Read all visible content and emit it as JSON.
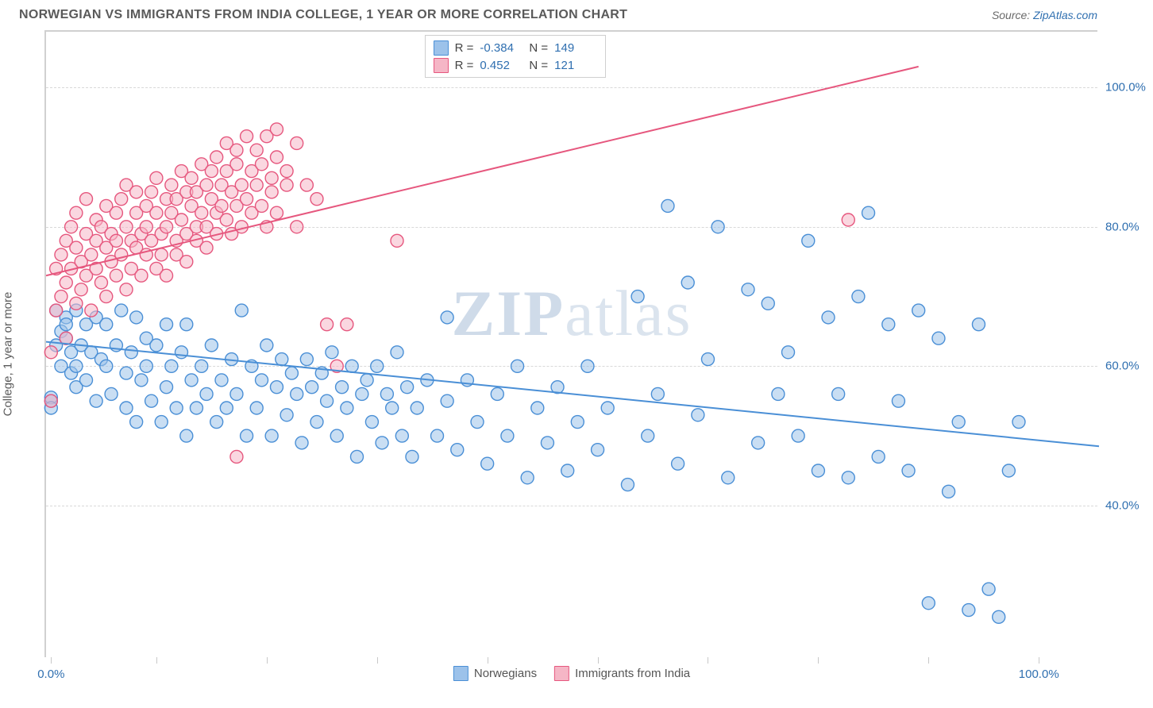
{
  "title": "NORWEGIAN VS IMMIGRANTS FROM INDIA COLLEGE, 1 YEAR OR MORE CORRELATION CHART",
  "source_label": "Source:",
  "source_name": "ZipAtlas.com",
  "watermark": {
    "part1": "ZIP",
    "part2": "atlas"
  },
  "yaxis_title": "College, 1 year or more",
  "chart": {
    "type": "scatter-with-trendlines",
    "background_color": "#ffffff",
    "grid_color": "#d8d8d8",
    "xlim": [
      0,
      105
    ],
    "ylim": [
      18,
      108
    ],
    "xticks_minor": [
      0.5,
      11,
      22,
      33,
      44,
      55,
      66,
      77,
      88,
      99
    ],
    "xticks_labeled": [
      {
        "x": 0.5,
        "label": "0.0%"
      },
      {
        "x": 99,
        "label": "100.0%"
      }
    ],
    "yticks": [
      {
        "y": 40,
        "label": "40.0%"
      },
      {
        "y": 60,
        "label": "60.0%"
      },
      {
        "y": 80,
        "label": "80.0%"
      },
      {
        "y": 100,
        "label": "100.0%"
      }
    ],
    "marker_radius": 8,
    "marker_stroke_width": 1.4,
    "line_width": 2,
    "series": [
      {
        "name": "Norwegians",
        "color_fill": "#9cc2ea",
        "color_stroke": "#4a8fd6",
        "fill_opacity": 0.55,
        "r_value": "-0.384",
        "n_value": "149",
        "trendline": {
          "x1": 0,
          "y1": 63.5,
          "x2": 105,
          "y2": 48.5
        },
        "points": [
          [
            0.5,
            55
          ],
          [
            0.5,
            55.5
          ],
          [
            0.5,
            54
          ],
          [
            1,
            68
          ],
          [
            1,
            63
          ],
          [
            1.5,
            65
          ],
          [
            1.5,
            60
          ],
          [
            2,
            67
          ],
          [
            2,
            66
          ],
          [
            2,
            64
          ],
          [
            2.5,
            62
          ],
          [
            2.5,
            59
          ],
          [
            3,
            68
          ],
          [
            3,
            60
          ],
          [
            3,
            57
          ],
          [
            3.5,
            63
          ],
          [
            4,
            66
          ],
          [
            4,
            58
          ],
          [
            4.5,
            62
          ],
          [
            5,
            67
          ],
          [
            5,
            55
          ],
          [
            5.5,
            61
          ],
          [
            6,
            66
          ],
          [
            6,
            60
          ],
          [
            6.5,
            56
          ],
          [
            7,
            63
          ],
          [
            7.5,
            68
          ],
          [
            8,
            59
          ],
          [
            8,
            54
          ],
          [
            8.5,
            62
          ],
          [
            9,
            67
          ],
          [
            9,
            52
          ],
          [
            9.5,
            58
          ],
          [
            10,
            64
          ],
          [
            10,
            60
          ],
          [
            10.5,
            55
          ],
          [
            11,
            63
          ],
          [
            11.5,
            52
          ],
          [
            12,
            66
          ],
          [
            12,
            57
          ],
          [
            12.5,
            60
          ],
          [
            13,
            54
          ],
          [
            13.5,
            62
          ],
          [
            14,
            66
          ],
          [
            14,
            50
          ],
          [
            14.5,
            58
          ],
          [
            15,
            54
          ],
          [
            15.5,
            60
          ],
          [
            16,
            56
          ],
          [
            16.5,
            63
          ],
          [
            17,
            52
          ],
          [
            17.5,
            58
          ],
          [
            18,
            54
          ],
          [
            18.5,
            61
          ],
          [
            19,
            56
          ],
          [
            19.5,
            68
          ],
          [
            20,
            50
          ],
          [
            20.5,
            60
          ],
          [
            21,
            54
          ],
          [
            21.5,
            58
          ],
          [
            22,
            63
          ],
          [
            22.5,
            50
          ],
          [
            23,
            57
          ],
          [
            23.5,
            61
          ],
          [
            24,
            53
          ],
          [
            24.5,
            59
          ],
          [
            25,
            56
          ],
          [
            25.5,
            49
          ],
          [
            26,
            61
          ],
          [
            26.5,
            57
          ],
          [
            27,
            52
          ],
          [
            27.5,
            59
          ],
          [
            28,
            55
          ],
          [
            28.5,
            62
          ],
          [
            29,
            50
          ],
          [
            29.5,
            57
          ],
          [
            30,
            54
          ],
          [
            30.5,
            60
          ],
          [
            31,
            47
          ],
          [
            31.5,
            56
          ],
          [
            32,
            58
          ],
          [
            32.5,
            52
          ],
          [
            33,
            60
          ],
          [
            33.5,
            49
          ],
          [
            34,
            56
          ],
          [
            34.5,
            54
          ],
          [
            35,
            62
          ],
          [
            35.5,
            50
          ],
          [
            36,
            57
          ],
          [
            36.5,
            47
          ],
          [
            37,
            54
          ],
          [
            38,
            58
          ],
          [
            39,
            50
          ],
          [
            40,
            55
          ],
          [
            40,
            67
          ],
          [
            41,
            48
          ],
          [
            42,
            58
          ],
          [
            43,
            52
          ],
          [
            44,
            46
          ],
          [
            45,
            56
          ],
          [
            46,
            50
          ],
          [
            47,
            60
          ],
          [
            48,
            44
          ],
          [
            49,
            54
          ],
          [
            50,
            49
          ],
          [
            51,
            57
          ],
          [
            52,
            45
          ],
          [
            53,
            52
          ],
          [
            54,
            60
          ],
          [
            55,
            48
          ],
          [
            56,
            54
          ],
          [
            58,
            43
          ],
          [
            59,
            70
          ],
          [
            60,
            50
          ],
          [
            61,
            56
          ],
          [
            62,
            83
          ],
          [
            63,
            46
          ],
          [
            64,
            72
          ],
          [
            65,
            53
          ],
          [
            66,
            61
          ],
          [
            67,
            80
          ],
          [
            68,
            44
          ],
          [
            70,
            71
          ],
          [
            71,
            49
          ],
          [
            72,
            69
          ],
          [
            73,
            56
          ],
          [
            74,
            62
          ],
          [
            75,
            50
          ],
          [
            76,
            78
          ],
          [
            77,
            45
          ],
          [
            78,
            67
          ],
          [
            79,
            56
          ],
          [
            80,
            44
          ],
          [
            81,
            70
          ],
          [
            82,
            82
          ],
          [
            83,
            47
          ],
          [
            84,
            66
          ],
          [
            85,
            55
          ],
          [
            86,
            45
          ],
          [
            87,
            68
          ],
          [
            88,
            26
          ],
          [
            89,
            64
          ],
          [
            90,
            42
          ],
          [
            91,
            52
          ],
          [
            92,
            25
          ],
          [
            93,
            66
          ],
          [
            94,
            28
          ],
          [
            95,
            24
          ],
          [
            96,
            45
          ],
          [
            97,
            52
          ]
        ]
      },
      {
        "name": "Immigrants from India",
        "color_fill": "#f5b6c6",
        "color_stroke": "#e6577e",
        "fill_opacity": 0.55,
        "r_value": "0.452",
        "n_value": "121",
        "trendline": {
          "x1": 0,
          "y1": 73,
          "x2": 87,
          "y2": 103
        },
        "points": [
          [
            0.5,
            62
          ],
          [
            0.5,
            55
          ],
          [
            1,
            74
          ],
          [
            1,
            68
          ],
          [
            1.5,
            76
          ],
          [
            1.5,
            70
          ],
          [
            2,
            78
          ],
          [
            2,
            72
          ],
          [
            2,
            64
          ],
          [
            2.5,
            80
          ],
          [
            2.5,
            74
          ],
          [
            3,
            77
          ],
          [
            3,
            69
          ],
          [
            3,
            82
          ],
          [
            3.5,
            75
          ],
          [
            3.5,
            71
          ],
          [
            4,
            79
          ],
          [
            4,
            73
          ],
          [
            4,
            84
          ],
          [
            4.5,
            76
          ],
          [
            4.5,
            68
          ],
          [
            5,
            81
          ],
          [
            5,
            74
          ],
          [
            5,
            78
          ],
          [
            5.5,
            72
          ],
          [
            5.5,
            80
          ],
          [
            6,
            77
          ],
          [
            6,
            83
          ],
          [
            6,
            70
          ],
          [
            6.5,
            79
          ],
          [
            6.5,
            75
          ],
          [
            7,
            82
          ],
          [
            7,
            73
          ],
          [
            7,
            78
          ],
          [
            7.5,
            76
          ],
          [
            7.5,
            84
          ],
          [
            8,
            80
          ],
          [
            8,
            71
          ],
          [
            8,
            86
          ],
          [
            8.5,
            78
          ],
          [
            8.5,
            74
          ],
          [
            9,
            82
          ],
          [
            9,
            77
          ],
          [
            9,
            85
          ],
          [
            9.5,
            79
          ],
          [
            9.5,
            73
          ],
          [
            10,
            83
          ],
          [
            10,
            76
          ],
          [
            10,
            80
          ],
          [
            10.5,
            78
          ],
          [
            10.5,
            85
          ],
          [
            11,
            82
          ],
          [
            11,
            74
          ],
          [
            11,
            87
          ],
          [
            11.5,
            79
          ],
          [
            11.5,
            76
          ],
          [
            12,
            84
          ],
          [
            12,
            80
          ],
          [
            12,
            73
          ],
          [
            12.5,
            82
          ],
          [
            12.5,
            86
          ],
          [
            13,
            78
          ],
          [
            13,
            84
          ],
          [
            13,
            76
          ],
          [
            13.5,
            81
          ],
          [
            13.5,
            88
          ],
          [
            14,
            85
          ],
          [
            14,
            79
          ],
          [
            14,
            75
          ],
          [
            14.5,
            83
          ],
          [
            14.5,
            87
          ],
          [
            15,
            80
          ],
          [
            15,
            85
          ],
          [
            15,
            78
          ],
          [
            15.5,
            82
          ],
          [
            15.5,
            89
          ],
          [
            16,
            86
          ],
          [
            16,
            80
          ],
          [
            16,
            77
          ],
          [
            16.5,
            84
          ],
          [
            16.5,
            88
          ],
          [
            17,
            82
          ],
          [
            17,
            90
          ],
          [
            17,
            79
          ],
          [
            17.5,
            86
          ],
          [
            17.5,
            83
          ],
          [
            18,
            88
          ],
          [
            18,
            81
          ],
          [
            18,
            92
          ],
          [
            18.5,
            85
          ],
          [
            18.5,
            79
          ],
          [
            19,
            89
          ],
          [
            19,
            83
          ],
          [
            19,
            91
          ],
          [
            19.5,
            86
          ],
          [
            19.5,
            80
          ],
          [
            20,
            93
          ],
          [
            20,
            84
          ],
          [
            20.5,
            88
          ],
          [
            20.5,
            82
          ],
          [
            21,
            91
          ],
          [
            21,
            86
          ],
          [
            21.5,
            89
          ],
          [
            21.5,
            83
          ],
          [
            22,
            93
          ],
          [
            22,
            80
          ],
          [
            22.5,
            87
          ],
          [
            22.5,
            85
          ],
          [
            23,
            90
          ],
          [
            23,
            82
          ],
          [
            23,
            94
          ],
          [
            24,
            88
          ],
          [
            24,
            86
          ],
          [
            25,
            92
          ],
          [
            25,
            80
          ],
          [
            26,
            86
          ],
          [
            27,
            84
          ],
          [
            28,
            66
          ],
          [
            29,
            60
          ],
          [
            30,
            66
          ],
          [
            35,
            78
          ],
          [
            19,
            47
          ],
          [
            80,
            81
          ]
        ]
      }
    ]
  }
}
